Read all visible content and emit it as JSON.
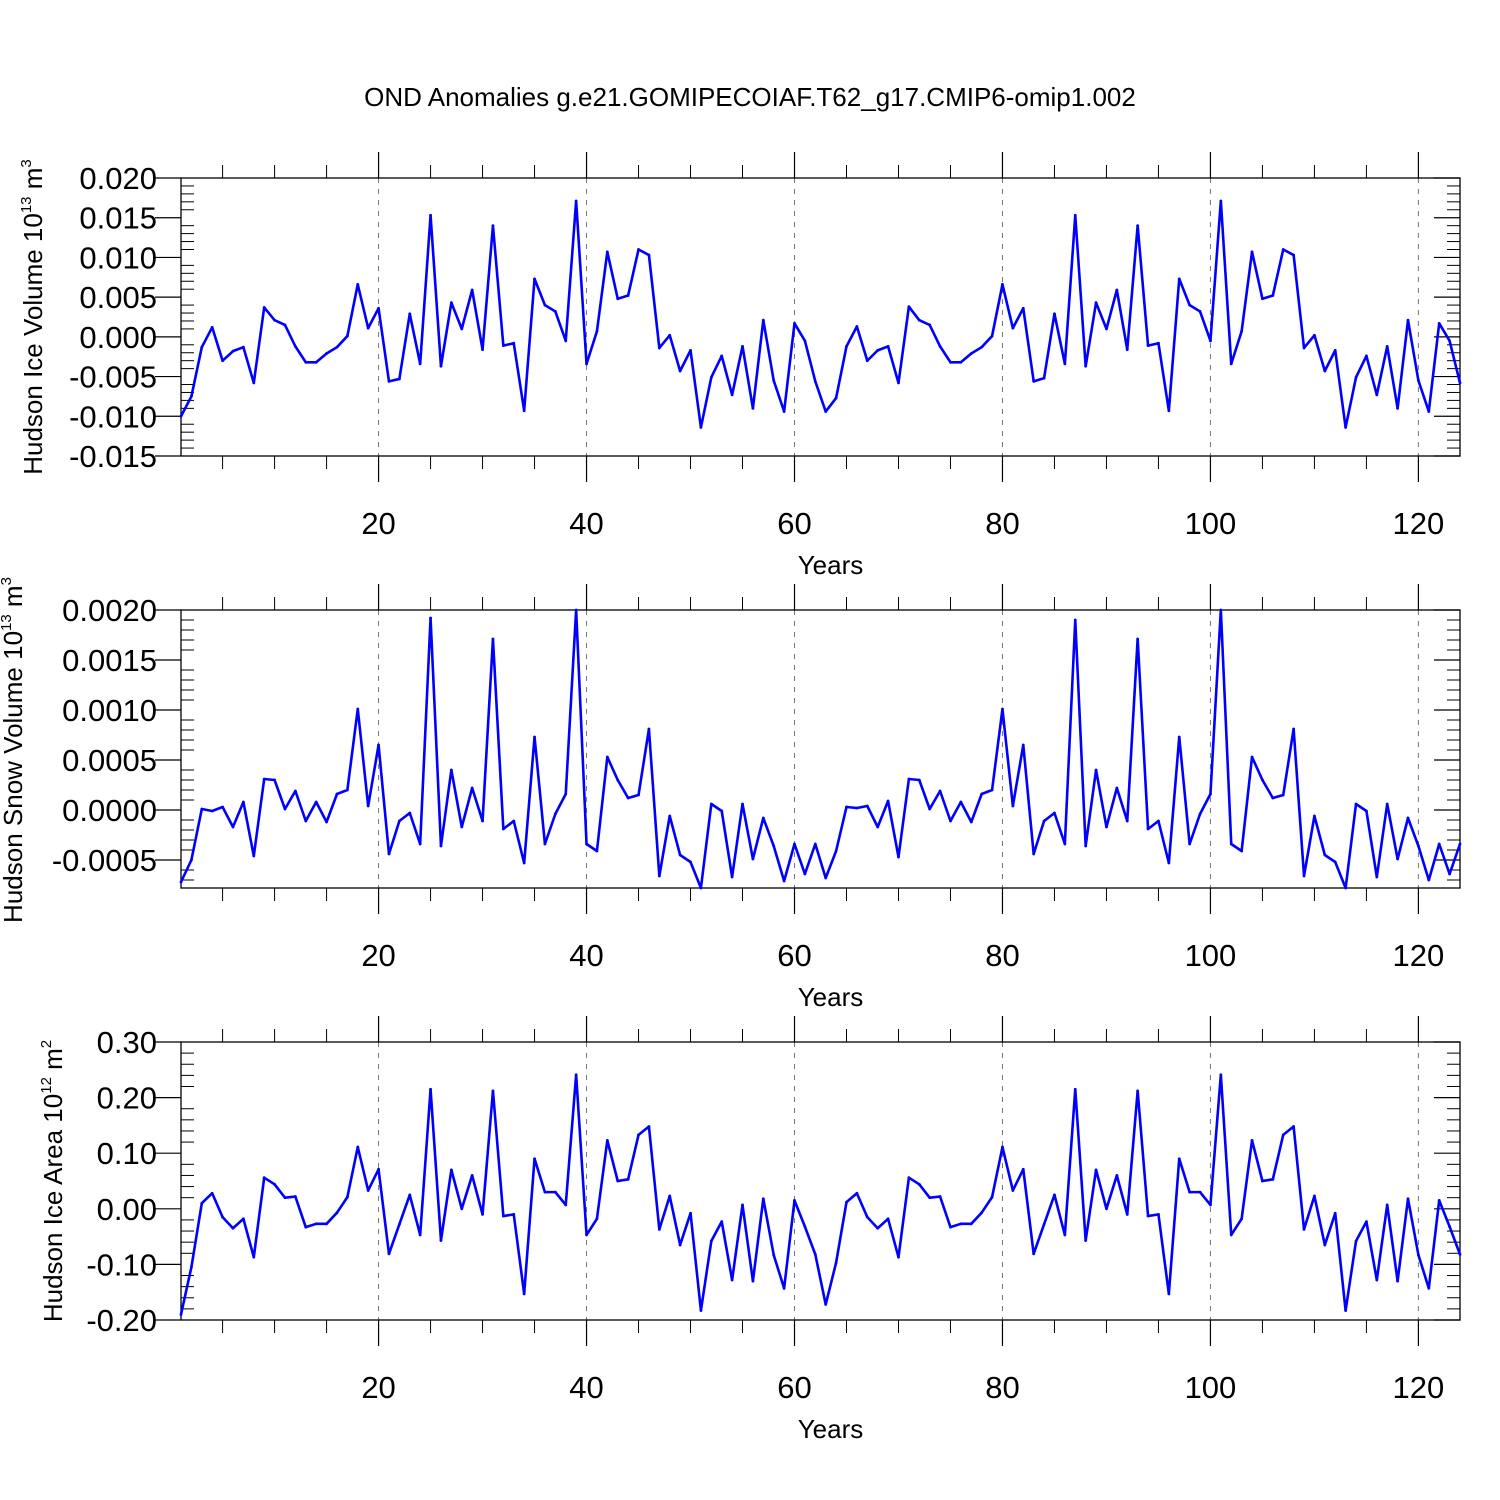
{
  "title": "OND Anomalies g.e21.GOMIPECOIAF.T62_g17.CMIP6-omip1.002",
  "colors": {
    "series": "#0000ff",
    "axis": "#000000",
    "grid": "#777777"
  },
  "chart_data": [
    {
      "type": "line",
      "xlabel": "Years",
      "ylabel": {
        "text": "Hudson Ice Volume 10",
        "exponent": "13",
        "unit": " m",
        "unit_exponent": "3"
      },
      "xlim": [
        1,
        124
      ],
      "ylim": [
        -0.015,
        0.02
      ],
      "xticks": [
        20,
        40,
        60,
        80,
        100,
        120
      ],
      "xtick_labels": [
        "20",
        "40",
        "60",
        "80",
        "100",
        "120"
      ],
      "yticks": [
        -0.015,
        -0.01,
        -0.005,
        0.0,
        0.005,
        0.01,
        0.015,
        0.02
      ],
      "ytick_labels": [
        "-0.015",
        "-0.010",
        "-0.005",
        "0.000",
        "0.005",
        "0.010",
        "0.015",
        "0.020"
      ],
      "grid": "dashed vertical at major x ticks",
      "series": [
        {
          "x_start": 1,
          "values": [
            -0.01,
            -0.0075,
            -0.0013,
            0.0012,
            -0.003,
            -0.0018,
            -0.0013,
            -0.0058,
            0.0037,
            0.0021,
            0.0015,
            -0.0012,
            -0.0032,
            -0.0032,
            -0.0021,
            -0.0013,
            0.0001,
            0.0066,
            0.0011,
            0.0036,
            -0.0056,
            -0.0053,
            0.0029,
            -0.0034,
            0.0153,
            -0.0037,
            0.0043,
            0.001,
            0.0059,
            -0.0016,
            0.014,
            -0.0011,
            -0.0008,
            -0.0093,
            0.0073,
            0.004,
            0.0032,
            -0.0005,
            0.0171,
            -0.0034,
            0.0007,
            0.0107,
            0.0048,
            0.0052,
            0.011,
            0.0103,
            -0.0014,
            0.0002,
            -0.0043,
            -0.0017,
            -0.0114,
            -0.0051,
            -0.0024,
            -0.0073,
            -0.0012,
            -0.009,
            0.0021,
            -0.0055,
            -0.0094,
            0.0017,
            -0.0005,
            -0.0056,
            -0.0094,
            -0.0077,
            -0.0012,
            0.0013,
            -0.003,
            -0.0017,
            -0.0012,
            -0.0058,
            0.0038,
            0.0021,
            0.0015,
            -0.0012,
            -0.0032,
            -0.0032,
            -0.0021,
            -0.0013,
            0.0001,
            0.0066,
            0.0011,
            0.0036,
            -0.0056,
            -0.0052,
            0.0029,
            -0.0034,
            0.0153,
            -0.0037,
            0.0043,
            0.001,
            0.0059,
            -0.0016,
            0.014,
            -0.0011,
            -0.0008,
            -0.0093,
            0.0073,
            0.004,
            0.0032,
            -0.0005,
            0.0171,
            -0.0034,
            0.0007,
            0.0107,
            0.0048,
            0.0052,
            0.011,
            0.0103,
            -0.0014,
            0.0002,
            -0.0043,
            -0.0017,
            -0.0114,
            -0.0051,
            -0.0024,
            -0.0073,
            -0.0012,
            -0.009,
            0.0021,
            -0.0055,
            -0.0094,
            0.0017,
            -0.0005,
            -0.0058
          ]
        }
      ]
    },
    {
      "type": "line",
      "xlabel": "Years",
      "ylabel": {
        "text": "Hudson Snow Volume 10",
        "exponent": "13",
        "unit": " m",
        "unit_exponent": "3"
      },
      "xlim": [
        1,
        124
      ],
      "ylim": [
        -0.00078,
        0.002
      ],
      "xticks": [
        20,
        40,
        60,
        80,
        100,
        120
      ],
      "xtick_labels": [
        "20",
        "40",
        "60",
        "80",
        "100",
        "120"
      ],
      "yticks": [
        -0.0005,
        0.0,
        0.0005,
        0.001,
        0.0015,
        0.002
      ],
      "ytick_labels": [
        "-0.0005",
        "0.0000",
        "0.0005",
        "0.0010",
        "0.0015",
        "0.0020"
      ],
      "grid": "dashed vertical at major x ticks",
      "series": [
        {
          "x_start": 1,
          "values": [
            -0.00072,
            -0.0005,
            1e-05,
            -1e-05,
            3e-05,
            -0.00017,
            8e-05,
            -0.00046,
            0.00031,
            0.0003,
            1e-05,
            0.00019,
            -0.00011,
            8e-05,
            -0.00012,
            0.00016,
            0.0002,
            0.00101,
            4e-05,
            0.00065,
            -0.00044,
            -0.00011,
            -3e-05,
            -0.00034,
            0.00192,
            -0.00036,
            0.0004,
            -0.00017,
            0.00022,
            -0.00011,
            0.00171,
            -0.00019,
            -0.00011,
            -0.00053,
            0.00073,
            -0.00034,
            -4e-05,
            0.00016,
            0.002,
            -0.00034,
            -0.00041,
            0.00053,
            0.0003,
            0.00012,
            0.00015,
            0.00081,
            -0.00066,
            -6e-05,
            -0.00045,
            -0.00052,
            -0.00078,
            6e-05,
            -1e-05,
            -0.00067,
            6e-05,
            -0.00049,
            -8e-05,
            -0.00036,
            -0.00071,
            -0.00034,
            -0.00064,
            -0.00034,
            -0.00068,
            -0.00041,
            3e-05,
            2e-05,
            4e-05,
            -0.00017,
            9e-05,
            -0.00047,
            0.00031,
            0.0003,
            1e-05,
            0.00019,
            -0.00011,
            8e-05,
            -0.00012,
            0.00016,
            0.0002,
            0.00101,
            4e-05,
            0.00065,
            -0.00044,
            -0.00011,
            -3e-05,
            -0.00034,
            0.0019,
            -0.00036,
            0.0004,
            -0.00017,
            0.00022,
            -0.00011,
            0.00171,
            -0.00019,
            -0.00011,
            -0.00053,
            0.00073,
            -0.00034,
            -4e-05,
            0.00016,
            0.002,
            -0.00034,
            -0.00041,
            0.00053,
            0.0003,
            0.00012,
            0.00015,
            0.00081,
            -0.00066,
            -6e-05,
            -0.00045,
            -0.00052,
            -0.00078,
            6e-05,
            -1e-05,
            -0.00067,
            6e-05,
            -0.00049,
            -8e-05,
            -0.00036,
            -0.0007,
            -0.00034,
            -0.00064,
            -0.00034
          ]
        }
      ]
    },
    {
      "type": "line",
      "xlabel": "Years",
      "ylabel": {
        "text": "Hudson Ice Area 10",
        "exponent": "12",
        "unit": " m",
        "unit_exponent": "2"
      },
      "xlim": [
        1,
        124
      ],
      "ylim": [
        -0.2,
        0.3
      ],
      "xticks": [
        20,
        40,
        60,
        80,
        100,
        120
      ],
      "xtick_labels": [
        "20",
        "40",
        "60",
        "80",
        "100",
        "120"
      ],
      "yticks": [
        -0.2,
        -0.1,
        0.0,
        0.1,
        0.2,
        0.3
      ],
      "ytick_labels": [
        "-0.20",
        "-0.10",
        "0.00",
        "0.10",
        "0.20",
        "0.30"
      ],
      "grid": "dashed vertical at major x ticks",
      "series": [
        {
          "x_start": 1,
          "values": [
            -0.19,
            -0.105,
            0.01,
            0.028,
            -0.015,
            -0.035,
            -0.018,
            -0.087,
            0.056,
            0.044,
            0.02,
            0.022,
            -0.033,
            -0.027,
            -0.027,
            -0.007,
            0.021,
            0.111,
            0.033,
            0.071,
            -0.081,
            -0.028,
            0.025,
            -0.047,
            0.215,
            -0.057,
            0.07,
            0.0,
            0.06,
            -0.01,
            0.212,
            -0.013,
            -0.01,
            -0.153,
            0.09,
            0.03,
            0.03,
            0.007,
            0.241,
            -0.047,
            -0.018,
            0.123,
            0.05,
            0.053,
            0.133,
            0.148,
            -0.037,
            0.023,
            -0.065,
            -0.008,
            -0.183,
            -0.058,
            -0.023,
            -0.128,
            0.007,
            -0.13,
            0.018,
            -0.083,
            -0.143,
            0.015,
            -0.032,
            -0.082,
            -0.172,
            -0.097,
            0.012,
            0.028,
            -0.015,
            -0.035,
            -0.018,
            -0.087,
            0.056,
            0.044,
            0.02,
            0.022,
            -0.033,
            -0.027,
            -0.027,
            -0.007,
            0.021,
            0.111,
            0.033,
            0.071,
            -0.081,
            -0.028,
            0.025,
            -0.047,
            0.215,
            -0.057,
            0.07,
            0.0,
            0.06,
            -0.01,
            0.212,
            -0.013,
            -0.01,
            -0.153,
            0.09,
            0.03,
            0.03,
            0.007,
            0.241,
            -0.047,
            -0.018,
            0.123,
            0.05,
            0.053,
            0.133,
            0.148,
            -0.037,
            0.023,
            -0.065,
            -0.008,
            -0.183,
            -0.058,
            -0.023,
            -0.128,
            0.007,
            -0.13,
            0.018,
            -0.083,
            -0.143,
            0.015,
            -0.032,
            -0.082
          ]
        }
      ]
    }
  ]
}
